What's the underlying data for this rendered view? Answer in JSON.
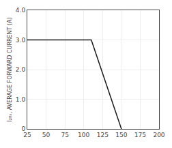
{
  "chart_data": {
    "type": "line",
    "x": [
      25,
      110,
      150
    ],
    "values": [
      3.0,
      3.0,
      0.0
    ],
    "color": "#1a1a1a",
    "xlim": [
      25,
      200
    ],
    "ylim": [
      0,
      4.0
    ],
    "xticks": [
      25,
      50,
      75,
      100,
      125,
      150,
      175,
      200
    ],
    "yticks": [
      0,
      {
        "value": 1.0,
        "label": "1.0"
      },
      {
        "value": 2.0,
        "label": "2.0"
      },
      {
        "value": 3.0,
        "label": "3.0"
      },
      {
        "value": 4.0,
        "label": "4.0"
      }
    ],
    "ylabel": "I₂₈ₓ, AVERAGE FORWARD CURRENT (A)",
    "grid": true
  }
}
